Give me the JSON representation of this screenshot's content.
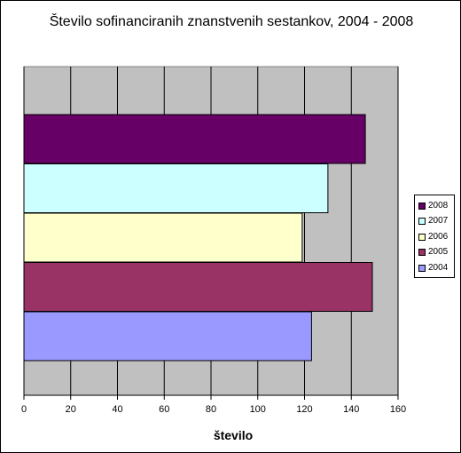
{
  "chart_data": {
    "type": "bar",
    "orientation": "horizontal",
    "title": "Število sofinanciranih znanstvenih sestankov, 2004 - 2008",
    "xlabel": "število",
    "ylabel": "",
    "xlim": [
      0,
      160
    ],
    "x_ticks": [
      "0",
      "20",
      "40",
      "60",
      "80",
      "100",
      "120",
      "140",
      "160"
    ],
    "grid": "vertical",
    "plot_background": "#c0c0c0",
    "legend_position": "right",
    "series": [
      {
        "name": "2008",
        "value": 146,
        "color": "#660066"
      },
      {
        "name": "2007",
        "value": 130,
        "color": "#ccffff"
      },
      {
        "name": "2006",
        "value": 119,
        "color": "#ffffcc"
      },
      {
        "name": "2005",
        "value": 149,
        "color": "#993366"
      },
      {
        "name": "2004",
        "value": 123,
        "color": "#9999ff"
      }
    ]
  }
}
